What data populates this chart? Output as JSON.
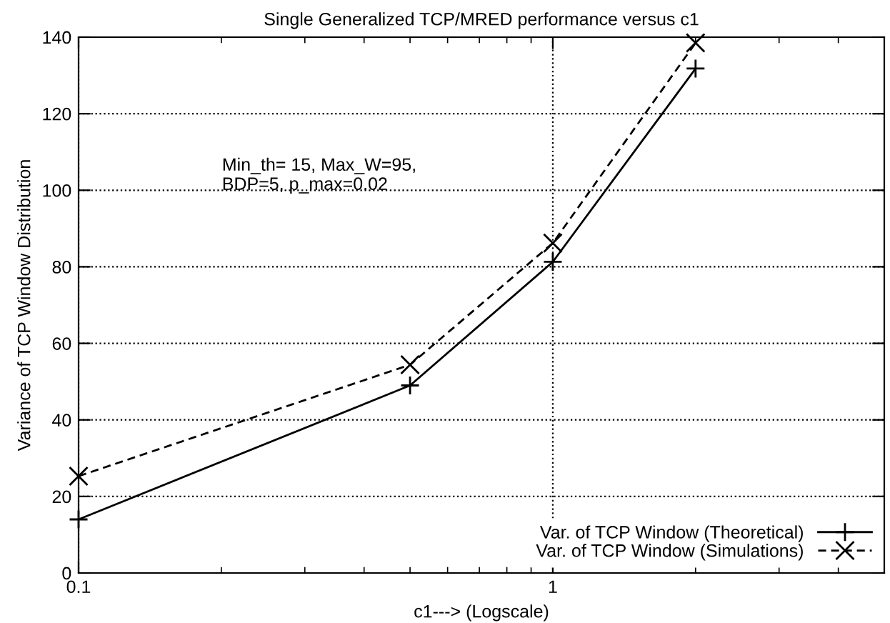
{
  "chart_data": {
    "type": "line",
    "title": "Single Generalized TCP/MRED performance versus c1",
    "xlabel": "c1---> (Logscale)",
    "ylabel": "Variance of TCP Window Distribution",
    "annotations": [
      "Min_th= 15, Max_W=95,\nBDP=5, p_max=0.02"
    ],
    "x": [
      0.1,
      0.5,
      1,
      2
    ],
    "series": [
      {
        "name": "Var. of TCP Window (Theoretical)",
        "color": "#000000",
        "values": [
          14,
          49,
          81.3,
          131.8
        ],
        "marker": "plus",
        "line_style": "solid"
      },
      {
        "name": "Var. of TCP Window (Simulations)",
        "color": "#000000",
        "values": [
          25.3,
          54.4,
          86.2,
          138.5
        ],
        "marker": "cross",
        "line_style": "dashed"
      }
    ],
    "log": "x",
    "xlim": [
      0.1,
      5
    ],
    "xticks": [
      0.1,
      1
    ],
    "ylim": [
      0,
      140
    ],
    "yticks": [
      0,
      20,
      40,
      60,
      80,
      100,
      120,
      140
    ],
    "grid": true,
    "legend": "bottom right"
  }
}
